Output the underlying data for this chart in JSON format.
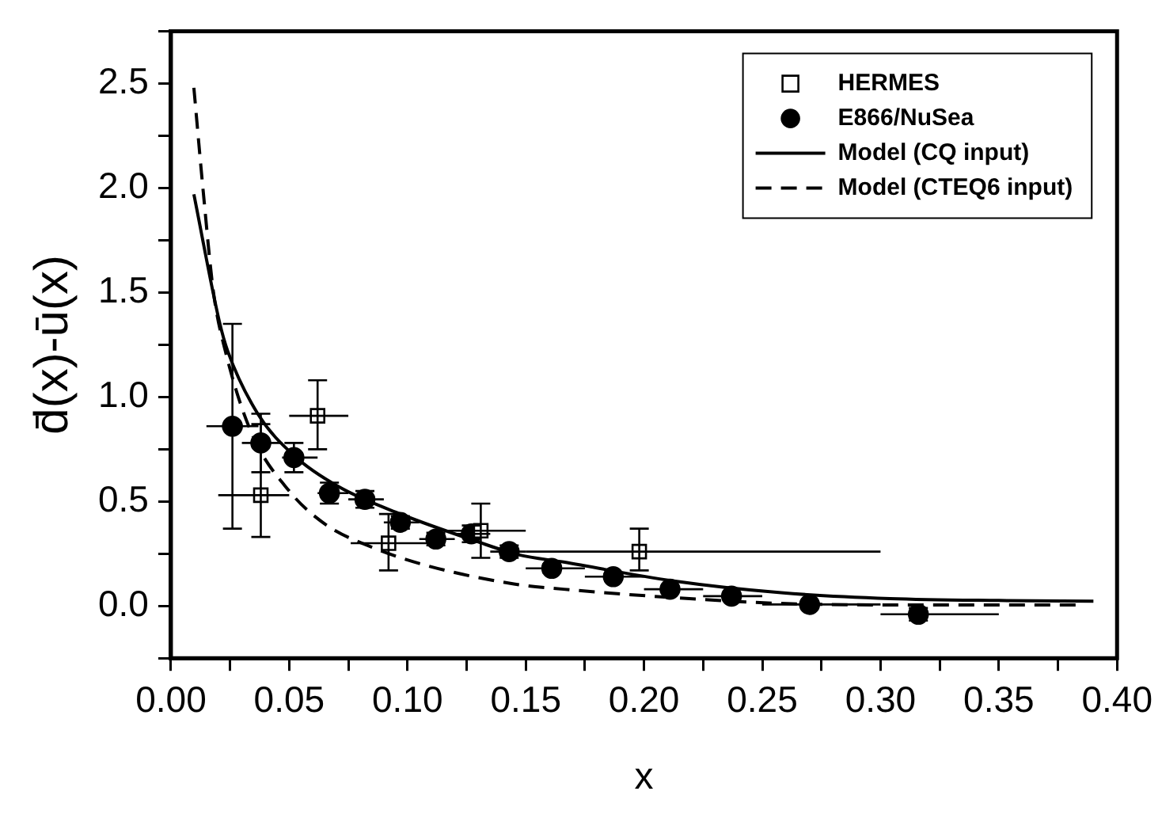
{
  "chart_data": {
    "type": "scatter",
    "xlabel": "x",
    "ylabel": "d̄(x)-ū(x)",
    "xlim": [
      0,
      0.4
    ],
    "xticks": [
      {
        "value": 0,
        "label": "0.00"
      },
      {
        "value": 0.05,
        "label": "0.05"
      },
      {
        "value": 0.1,
        "label": "0.10"
      },
      {
        "value": 0.15,
        "label": "0.15"
      },
      {
        "value": 0.2,
        "label": "0.20"
      },
      {
        "value": 0.25,
        "label": "0.25"
      },
      {
        "value": 0.3,
        "label": "0.30"
      },
      {
        "value": 0.35,
        "label": "0.35"
      },
      {
        "value": 0.4,
        "label": "0.40"
      }
    ],
    "ylim": [
      -0.25,
      2.75
    ],
    "yticks": [
      {
        "value": 0,
        "label": "0.0"
      },
      {
        "value": 0.5,
        "label": "0.5"
      },
      {
        "value": 1,
        "label": "1.0"
      },
      {
        "value": 1.5,
        "label": "1.5"
      },
      {
        "value": 2,
        "label": "2.0"
      },
      {
        "value": 2.5,
        "label": "2.5"
      }
    ],
    "grid": false,
    "legend": "top right",
    "series": [
      {
        "name": "HERMES",
        "type": "scatter",
        "marker": "square",
        "color": "#000000",
        "x": [
          0.038,
          0.062,
          0.092,
          0.131,
          0.198
        ],
        "values": [
          0.53,
          0.91,
          0.3,
          0.36,
          0.26
        ],
        "errors": [
          [
            0.33,
            0.87
          ],
          [
            0.75,
            1.08
          ],
          [
            0.17,
            0.44
          ],
          [
            0.23,
            0.49
          ],
          [
            0.17,
            0.37
          ]
        ],
        "xerrors": [
          [
            0.02,
            0.05
          ],
          [
            0.05,
            0.075
          ],
          [
            0.076,
            0.115
          ],
          [
            0.115,
            0.15
          ],
          [
            0.15,
            0.3
          ]
        ]
      },
      {
        "name": "E866/NuSea",
        "type": "scatter",
        "marker": "circle",
        "color": "#000000",
        "x": [
          0.026,
          0.038,
          0.052,
          0.067,
          0.082,
          0.097,
          0.112,
          0.127,
          0.143,
          0.161,
          0.187,
          0.211,
          0.237,
          0.27,
          0.316
        ],
        "values": [
          0.86,
          0.78,
          0.71,
          0.54,
          0.51,
          0.4,
          0.32,
          0.345,
          0.26,
          0.18,
          0.14,
          0.08,
          0.047,
          0.007,
          -0.04
        ],
        "errors": [
          [
            0.37,
            1.35
          ],
          [
            0.64,
            0.92
          ],
          [
            0.64,
            0.78
          ],
          [
            0.49,
            0.59
          ],
          [
            0.47,
            0.55
          ],
          [
            0.37,
            0.43
          ],
          [
            0.29,
            0.35
          ],
          [
            0.305,
            0.385
          ],
          [
            0.23,
            0.29
          ],
          [
            0.16,
            0.2
          ],
          null,
          null,
          null,
          null,
          [
            -0.07,
            -0.01
          ]
        ],
        "xerrors": [
          [
            0.015,
            0.037
          ],
          [
            0.03,
            0.047
          ],
          [
            0.047,
            0.062
          ],
          [
            0.062,
            0.075
          ],
          [
            0.075,
            0.09
          ],
          [
            0.09,
            0.105
          ],
          [
            0.105,
            0.12
          ],
          [
            0.12,
            0.135
          ],
          [
            0.135,
            0.15
          ],
          [
            0.15,
            0.175
          ],
          [
            0.175,
            0.2
          ],
          [
            0.2,
            0.225
          ],
          [
            0.225,
            0.25
          ],
          [
            0.25,
            0.3
          ],
          [
            0.3,
            0.35
          ]
        ]
      },
      {
        "name": "Model (CQ input)",
        "type": "line",
        "marker": "none",
        "line_style": "solid",
        "color": "#000000",
        "x": [
          0.0097,
          0.0205,
          0.024,
          0.0367,
          0.052,
          0.071,
          0.097,
          0.129,
          0.147,
          0.166,
          0.212,
          0.258,
          0.304,
          0.35,
          0.39
        ],
        "values": [
          1.97,
          1.36,
          1.22,
          0.92,
          0.72,
          0.57,
          0.44,
          0.31,
          0.245,
          0.21,
          0.12,
          0.063,
          0.035,
          0.026,
          0.023
        ]
      },
      {
        "name": "Model (CTEQ6 input)",
        "type": "line",
        "marker": "none",
        "line_style": "dashed",
        "color": "#000000",
        "x": [
          0.0097,
          0.0136,
          0.018,
          0.023,
          0.034,
          0.05,
          0.066,
          0.083,
          0.106,
          0.145,
          0.166,
          0.212,
          0.258,
          0.304,
          0.385
        ],
        "values": [
          2.48,
          1.99,
          1.5,
          1.22,
          0.83,
          0.55,
          0.385,
          0.29,
          0.2,
          0.105,
          0.08,
          0.04,
          0.012,
          0.005,
          0.005
        ]
      }
    ]
  }
}
